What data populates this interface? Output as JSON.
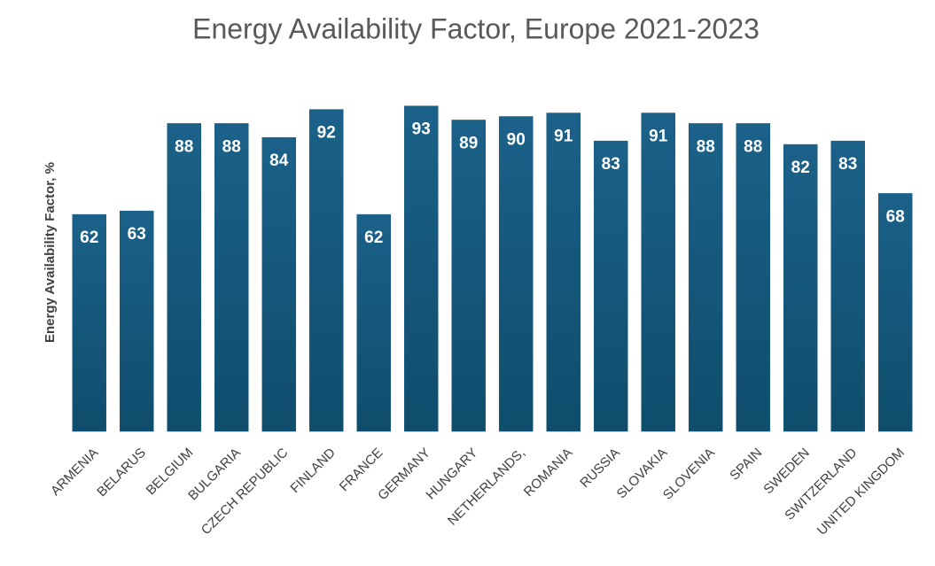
{
  "chart_data": {
    "type": "bar",
    "title": "Energy Availability Factor, Europe 2021-2023",
    "y_label": "Energy Availability Factor, %",
    "categories": [
      "ARMENIA",
      "BELARUS",
      "BELGIUM",
      "BULGARIA",
      "CZECH REPUBLIC",
      "FINLAND",
      "FRANCE",
      "GERMANY",
      "HUNGARY",
      "NETHERLANDS,",
      "ROMANIA",
      "RUSSIA",
      "SLOVAKIA",
      "SLOVENIA",
      "SPAIN",
      "SWEDEN",
      "SWITZERLAND",
      "UNITED KINGDOM"
    ],
    "values": [
      62,
      63,
      88,
      88,
      84,
      92,
      62,
      93,
      89,
      90,
      91,
      83,
      91,
      88,
      88,
      82,
      83,
      68
    ],
    "color": "#175d82",
    "ylim": [
      0,
      100
    ]
  }
}
